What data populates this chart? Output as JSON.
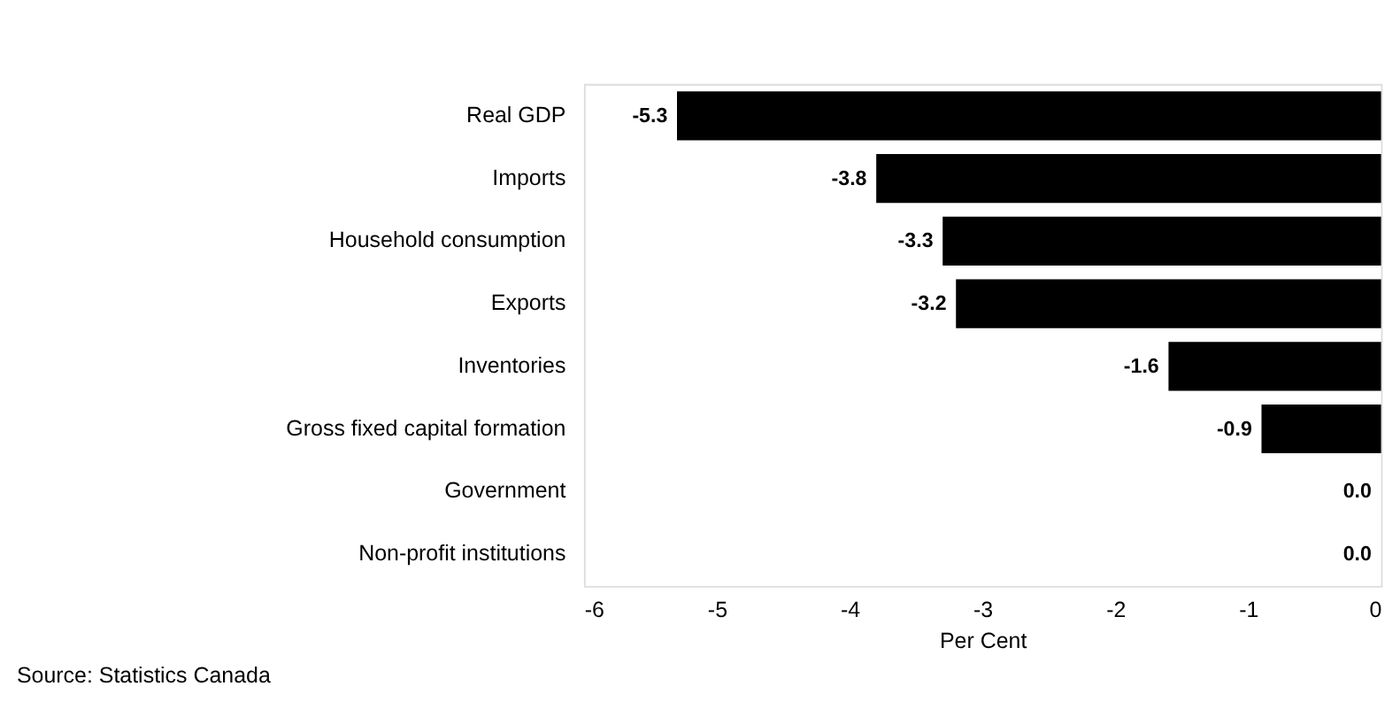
{
  "chart_data": {
    "type": "bar",
    "orientation": "horizontal",
    "categories": [
      "Real GDP",
      "Imports",
      "Household consumption",
      "Exports",
      "Inventories",
      "Gross fixed capital formation",
      "Government",
      "Non-profit institutions"
    ],
    "values": [
      -5.3,
      -3.8,
      -3.3,
      -3.2,
      -1.6,
      -0.9,
      0.0,
      0.0
    ],
    "color": "#000000",
    "xlim": [
      -6,
      0
    ],
    "xticks": [
      -6,
      -5,
      -4,
      -3,
      -2,
      -1,
      0
    ],
    "xlabel": "Per Cent",
    "value_labels": [
      "-5.3",
      "-3.8",
      "-3.3",
      "-3.2",
      "-1.6",
      "-0.9",
      "0.0",
      "0.0"
    ],
    "grid": false,
    "annotations": [
      "Source: Statistics Canada"
    ]
  }
}
